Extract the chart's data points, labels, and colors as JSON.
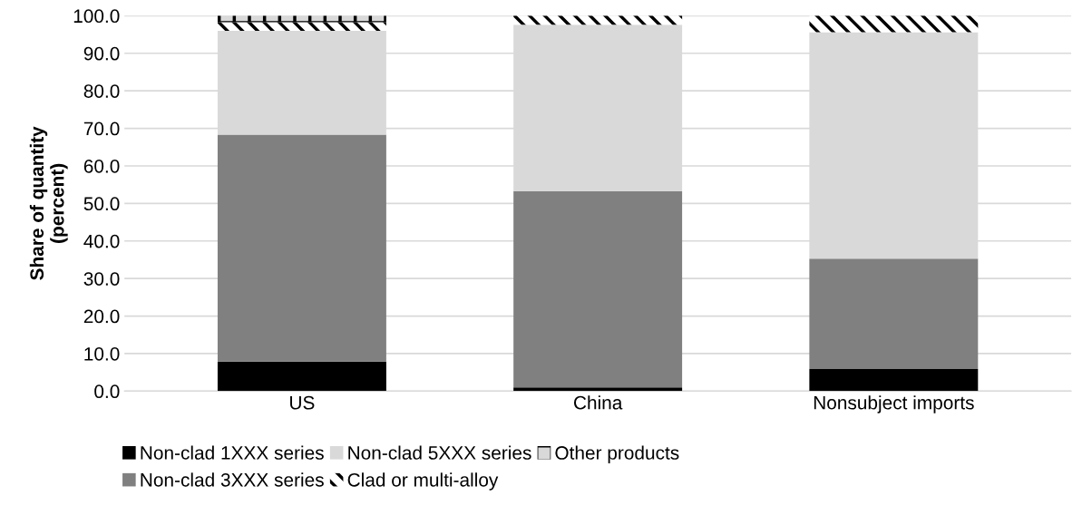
{
  "chart_data": {
    "type": "bar",
    "stacked": true,
    "ylabel": "Share of quantity\n(percent)",
    "categories": [
      "US",
      "China",
      "Nonsubject imports"
    ],
    "series": [
      {
        "name": "Non-clad 1XXX series",
        "color": "#000000",
        "values": [
          7.9,
          1.0,
          5.9
        ]
      },
      {
        "name": "Non-clad 3XXX series",
        "color": "#808080",
        "values": [
          60.4,
          52.3,
          29.4
        ]
      },
      {
        "name": "Non-clad 5XXX series",
        "color": "#d9d9d9",
        "values": [
          27.7,
          44.3,
          60.3
        ]
      },
      {
        "name": "Clad or multi-alloy",
        "color": "#ffffff",
        "values": [
          2.3,
          2.4,
          4.4
        ]
      },
      {
        "name": "Other products",
        "color": "#d9d9d9",
        "values": [
          1.7,
          0.0,
          0.0
        ]
      }
    ],
    "ylim": [
      0,
      100
    ],
    "yticks": [
      {
        "value": 0,
        "label": "0.0"
      },
      {
        "value": 10,
        "label": "10.0"
      },
      {
        "value": 20,
        "label": "20.0"
      },
      {
        "value": 30,
        "label": "30.0"
      },
      {
        "value": 40,
        "label": "40.0"
      },
      {
        "value": 50,
        "label": "50.0"
      },
      {
        "value": 60,
        "label": "60.0"
      },
      {
        "value": 70,
        "label": "70.0"
      },
      {
        "value": 80,
        "label": "80.0"
      },
      {
        "value": 90,
        "label": "90.0"
      },
      {
        "value": 100,
        "label": "100.0"
      }
    ],
    "grid": "y",
    "legend": "bottom"
  }
}
